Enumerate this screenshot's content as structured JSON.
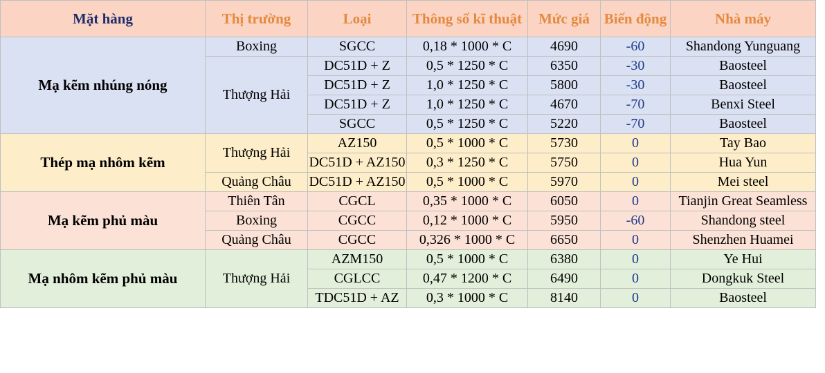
{
  "headers": {
    "product": "Mặt hàng",
    "market": "Thị trường",
    "type": "Loại",
    "spec": "Thông số kĩ thuật",
    "price": "Mức giá",
    "change": "Biến động",
    "factory": "Nhà máy"
  },
  "groups": [
    {
      "name": "Mạ kẽm nhúng nóng",
      "color": "#dae1f2",
      "rows": [
        {
          "market": "Boxing",
          "type": "SGCC",
          "spec": "0,18 * 1000 * C",
          "price": "4690",
          "change": "-60",
          "factory": "Shandong Yunguang"
        },
        {
          "market": "Thượng Hải",
          "type": "DC51D + Z",
          "spec": "0,5 * 1250 * C",
          "price": "6350",
          "change": "-30",
          "factory": "Baosteel"
        },
        {
          "market": "",
          "type": "DC51D + Z",
          "spec": "1,0 * 1250 * C",
          "price": "5800",
          "change": "-30",
          "factory": "Baosteel"
        },
        {
          "market": "",
          "type": "DC51D + Z",
          "spec": "1,0 * 1250 * C",
          "price": "4670",
          "change": "-70",
          "factory": "Benxi Steel"
        },
        {
          "market": "",
          "type": "SGCC",
          "spec": "0,5 * 1250 * C",
          "price": "5220",
          "change": "-70",
          "factory": "Baosteel"
        }
      ]
    },
    {
      "name": "Thép mạ nhôm kẽm",
      "color": "#fdeec9",
      "rows": [
        {
          "market": "Thượng Hải",
          "type": "AZ150",
          "spec": "0,5 * 1000 * C",
          "price": "5730",
          "change": "0",
          "factory": "Tay Bao"
        },
        {
          "market": "",
          "type": "DC51D + AZ150",
          "spec": "0,3 * 1250 * C",
          "price": "5750",
          "change": "0",
          "factory": "Hua Yun"
        },
        {
          "market": "Quảng Châu",
          "type": "DC51D + AZ150",
          "spec": "0,5 * 1000 * C",
          "price": "5970",
          "change": "0",
          "factory": "Mei steel"
        }
      ]
    },
    {
      "name": "Mạ kẽm phủ màu",
      "color": "#fbe1d6",
      "rows": [
        {
          "market": "Thiên Tân",
          "type": "CGCL",
          "spec": "0,35 * 1000 * C",
          "price": "6050",
          "change": "0",
          "factory": "Tianjin Great Seamless"
        },
        {
          "market": "Boxing",
          "type": "CGCC",
          "spec": "0,12 * 1000 * C",
          "price": "5950",
          "change": "-60",
          "factory": "Shandong steel"
        },
        {
          "market": "Quảng Châu",
          "type": "CGCC",
          "spec": "0,326 * 1000 * C",
          "price": "6650",
          "change": "0",
          "factory": "Shenzhen Huamei"
        }
      ]
    },
    {
      "name": "Mạ nhôm kẽm phủ màu",
      "color": "#e2efda",
      "rows": [
        {
          "market": "Thượng Hải",
          "type": "AZM150",
          "spec": "0,5 * 1000 * C",
          "price": "6380",
          "change": "0",
          "factory": "Ye Hui"
        },
        {
          "market": "",
          "type": "CGLCC",
          "spec": "0,47 * 1200 * C",
          "price": "6490",
          "change": "0",
          "factory": "Dongkuk Steel"
        },
        {
          "market": "",
          "type": "TDC51D + AZ",
          "spec": "0,3 * 1000 * C",
          "price": "8140",
          "change": "0",
          "factory": "Baosteel"
        }
      ]
    }
  ]
}
